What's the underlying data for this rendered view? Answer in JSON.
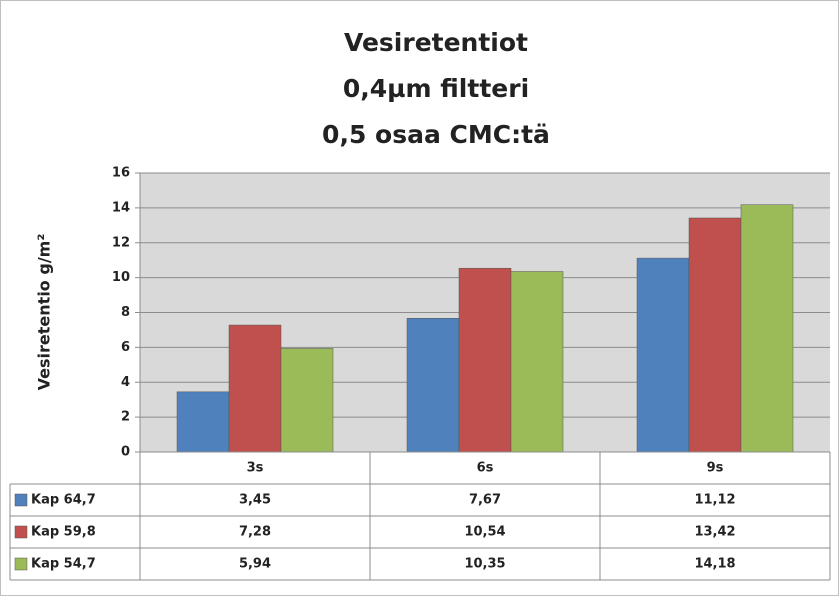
{
  "chart_data": {
    "type": "bar",
    "title": [
      "Vesiretentiot",
      "0,4µm filtteri",
      "0,5 osaa CMC:tä"
    ],
    "y_label": "Vesiretentio g/m²",
    "categories": [
      "3s",
      "6s",
      "9s"
    ],
    "series": [
      {
        "name": "Kap 64,7",
        "color": "#4f81bd",
        "values": [
          3.45,
          7.67,
          11.12
        ],
        "value_labels": [
          "3,45",
          "7,67",
          "11,12"
        ]
      },
      {
        "name": "Kap 59,8",
        "color": "#c0504d",
        "values": [
          7.28,
          10.54,
          13.42
        ],
        "value_labels": [
          "7,28",
          "10,54",
          "13,42"
        ]
      },
      {
        "name": "Kap 54,7",
        "color": "#9bbb59",
        "values": [
          5.94,
          10.35,
          14.18
        ],
        "value_labels": [
          "5,94",
          "10,35",
          "14,18"
        ]
      }
    ],
    "ylim": [
      0,
      16
    ],
    "yticks": [
      0,
      2,
      4,
      6,
      8,
      10,
      12,
      14,
      16
    ],
    "grid": true
  }
}
